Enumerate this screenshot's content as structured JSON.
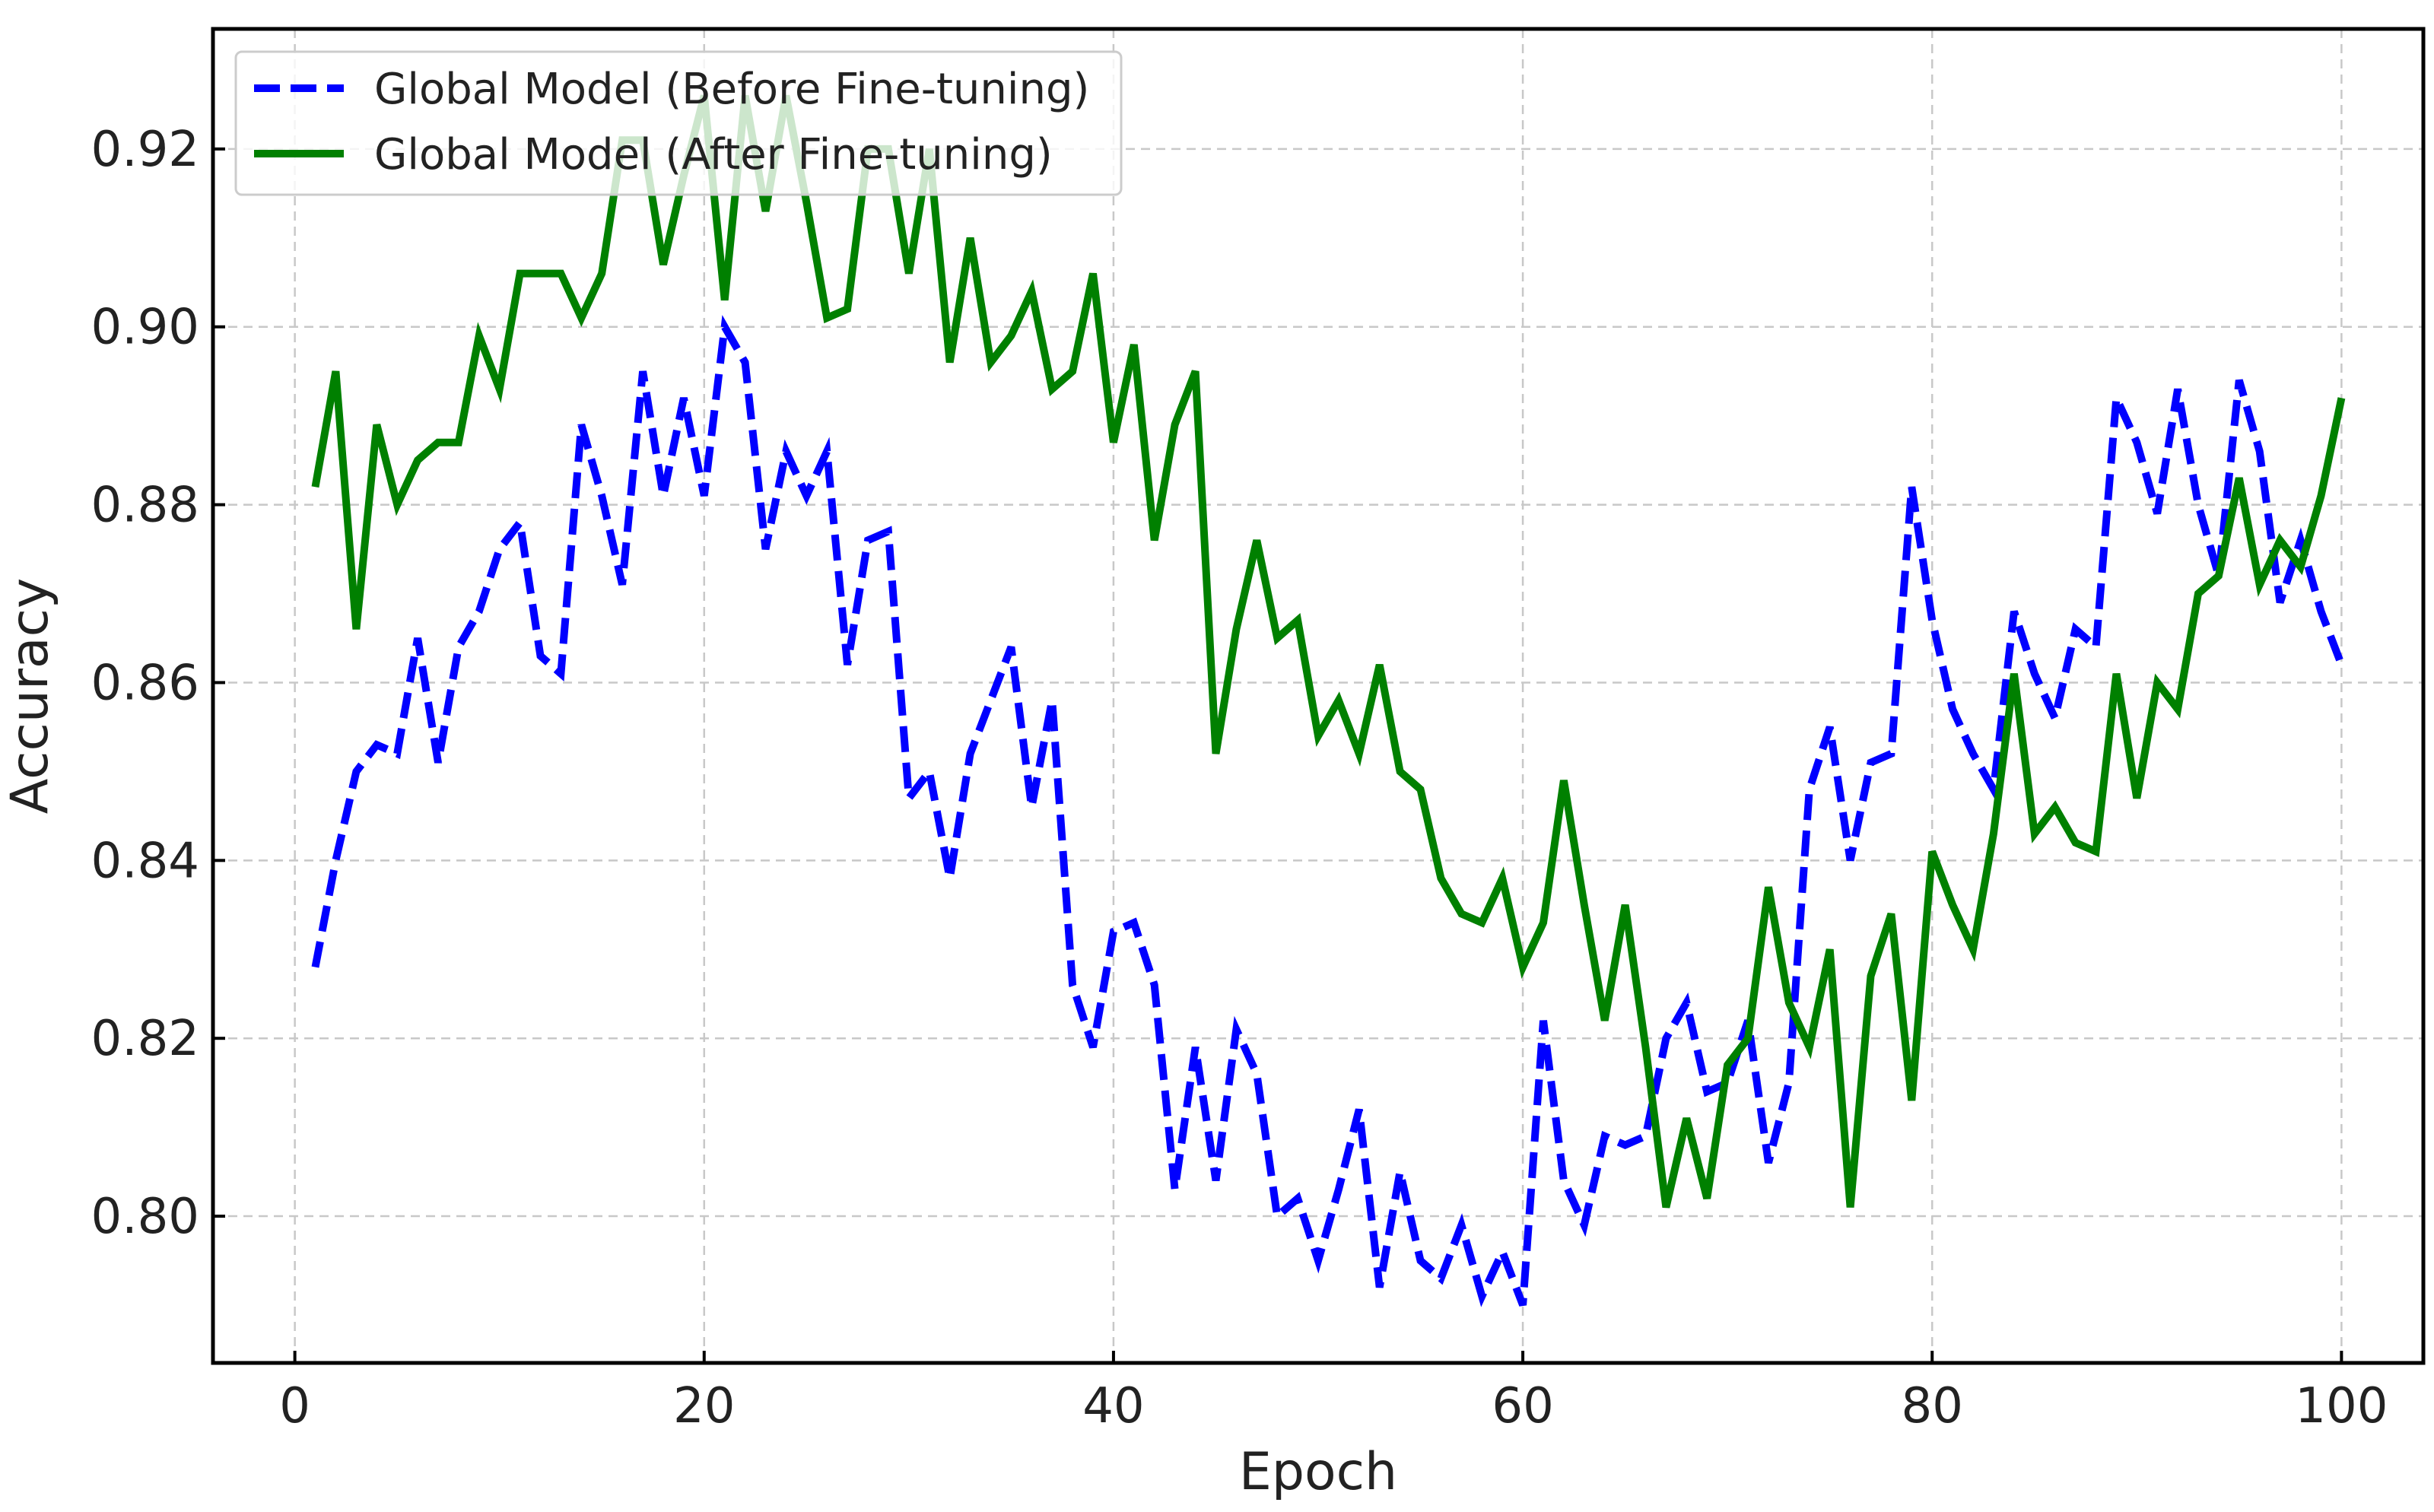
{
  "chart_data": {
    "type": "line",
    "xlabel": "Epoch",
    "ylabel": "Accuracy",
    "xlim": [
      -4,
      104
    ],
    "ylim": [
      0.7835,
      0.9335
    ],
    "xticks": [
      0,
      20,
      40,
      60,
      80,
      100
    ],
    "yticks": [
      0.8,
      0.82,
      0.84,
      0.86,
      0.88,
      0.9,
      0.92
    ],
    "xtick_labels": [
      "0",
      "20",
      "40",
      "60",
      "80",
      "100"
    ],
    "ytick_labels": [
      "0.80",
      "0.82",
      "0.84",
      "0.86",
      "0.88",
      "0.90",
      "0.92"
    ],
    "grid": true,
    "legend_position": "top-left",
    "x": [
      1,
      2,
      3,
      4,
      5,
      6,
      7,
      8,
      9,
      10,
      11,
      12,
      13,
      14,
      15,
      16,
      17,
      18,
      19,
      20,
      21,
      22,
      23,
      24,
      25,
      26,
      27,
      28,
      29,
      30,
      31,
      32,
      33,
      34,
      35,
      36,
      37,
      38,
      39,
      40,
      41,
      42,
      43,
      44,
      45,
      46,
      47,
      48,
      49,
      50,
      51,
      52,
      53,
      54,
      55,
      56,
      57,
      58,
      59,
      60,
      61,
      62,
      63,
      64,
      65,
      66,
      67,
      68,
      69,
      70,
      71,
      72,
      73,
      74,
      75,
      76,
      77,
      78,
      79,
      80,
      81,
      82,
      83,
      84,
      85,
      86,
      87,
      88,
      89,
      90,
      91,
      92,
      93,
      94,
      95,
      96,
      97,
      98,
      99,
      100
    ],
    "series": [
      {
        "name": "Global Model (Before Fine-tuning)",
        "color": "#0000ff",
        "style": "dashed",
        "values": [
          0.828,
          0.84,
          0.85,
          0.853,
          0.852,
          0.865,
          0.851,
          0.864,
          0.868,
          0.875,
          0.878,
          0.863,
          0.861,
          0.889,
          0.881,
          0.871,
          0.895,
          0.881,
          0.892,
          0.881,
          0.9,
          0.896,
          0.875,
          0.886,
          0.881,
          0.886,
          0.862,
          0.876,
          0.877,
          0.847,
          0.85,
          0.838,
          0.852,
          0.858,
          0.864,
          0.846,
          0.858,
          0.826,
          0.819,
          0.832,
          0.833,
          0.826,
          0.803,
          0.819,
          0.804,
          0.821,
          0.816,
          0.8,
          0.802,
          0.795,
          0.803,
          0.812,
          0.792,
          0.805,
          0.795,
          0.793,
          0.799,
          0.791,
          0.796,
          0.79,
          0.822,
          0.804,
          0.799,
          0.809,
          0.808,
          0.809,
          0.82,
          0.824,
          0.814,
          0.815,
          0.822,
          0.806,
          0.815,
          0.848,
          0.855,
          0.84,
          0.851,
          0.852,
          0.882,
          0.867,
          0.857,
          0.852,
          0.848,
          0.868,
          0.861,
          0.856,
          0.866,
          0.864,
          0.892,
          0.887,
          0.879,
          0.893,
          0.88,
          0.872,
          0.894,
          0.886,
          0.869,
          0.876,
          0.868,
          0.862
        ]
      },
      {
        "name": "Global Model (After Fine-tuning)",
        "color": "#008000",
        "style": "solid",
        "values": [
          0.882,
          0.895,
          0.866,
          0.889,
          0.88,
          0.885,
          0.887,
          0.887,
          0.899,
          0.893,
          0.906,
          0.906,
          0.906,
          0.901,
          0.906,
          0.921,
          0.921,
          0.907,
          0.917,
          0.926,
          0.903,
          0.926,
          0.913,
          0.926,
          0.914,
          0.901,
          0.902,
          0.92,
          0.92,
          0.906,
          0.92,
          0.896,
          0.91,
          0.896,
          0.899,
          0.904,
          0.893,
          0.895,
          0.906,
          0.887,
          0.898,
          0.876,
          0.889,
          0.895,
          0.852,
          0.866,
          0.876,
          0.865,
          0.867,
          0.854,
          0.858,
          0.852,
          0.862,
          0.85,
          0.848,
          0.838,
          0.834,
          0.833,
          0.838,
          0.828,
          0.833,
          0.849,
          0.835,
          0.822,
          0.835,
          0.819,
          0.801,
          0.811,
          0.802,
          0.817,
          0.82,
          0.837,
          0.824,
          0.819,
          0.83,
          0.801,
          0.827,
          0.834,
          0.813,
          0.841,
          0.835,
          0.83,
          0.843,
          0.861,
          0.843,
          0.846,
          0.842,
          0.841,
          0.861,
          0.847,
          0.86,
          0.857,
          0.87,
          0.872,
          0.883,
          0.871,
          0.876,
          0.873,
          0.881,
          0.892
        ]
      }
    ]
  }
}
